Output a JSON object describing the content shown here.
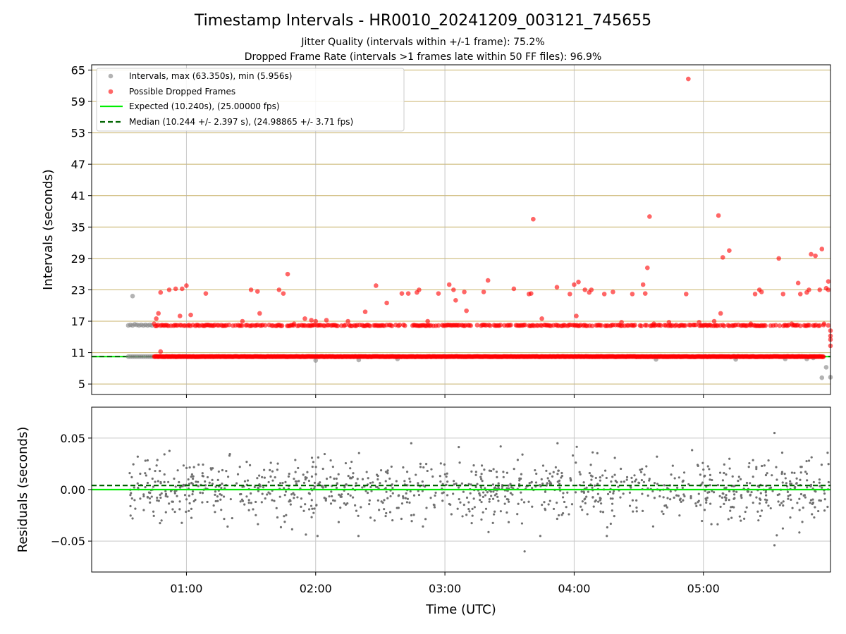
{
  "chart_data": [
    {
      "type": "scatter",
      "title": "Timestamp Intervals - HR0010_20241209_003121_745655",
      "subtitle_lines": [
        "Jitter Quality (intervals within +/-1 frame): 75.2%",
        "Dropped Frame Rate (intervals >1 frames late within 50 FF files): 96.9%"
      ],
      "xlabel": "",
      "ylabel": "Intervals (seconds)",
      "xlim": [
        "00:16",
        "05:59"
      ],
      "ylim": [
        3,
        66
      ],
      "y_ticks": [
        5,
        11,
        17,
        23,
        29,
        35,
        41,
        47,
        53,
        59,
        65
      ],
      "x_ticks": [
        "01:00",
        "02:00",
        "03:00",
        "04:00",
        "05:00"
      ],
      "grid": true,
      "legend_placement": "top-left",
      "legend": [
        "Intervals, max (63.350s), min (5.956s)",
        "Possible Dropped Frames",
        "Expected (10.240s), (25.00000 fps)",
        "Median (10.244 +/- 2.397 s), (24.98865 +/- 3.71 fps)"
      ],
      "expected_interval": 10.24,
      "median_interval": 10.244,
      "series": [
        {
          "name": "Intervals, max (63.350s), min (5.956s)",
          "color": "#808080",
          "points": [
            [
              "00:33",
              10.24
            ],
            [
              "00:34",
              10.24
            ],
            [
              "00:35",
              10.24
            ],
            [
              "00:36",
              10.24
            ],
            [
              "00:37",
              10.24
            ],
            [
              "00:38",
              10.24
            ],
            [
              "00:39",
              10.24
            ],
            [
              "00:40",
              10.24
            ],
            [
              "00:41",
              10.24
            ],
            [
              "00:42",
              10.24
            ],
            [
              "00:43",
              10.24
            ],
            [
              "00:44",
              10.24
            ],
            [
              "00:33",
              16.2
            ],
            [
              "00:34",
              16.3
            ],
            [
              "00:35",
              16.2
            ],
            [
              "00:36",
              16.4
            ],
            [
              "00:37",
              16.3
            ],
            [
              "00:38",
              16.2
            ],
            [
              "00:39",
              16.3
            ],
            [
              "00:40",
              16.2
            ],
            [
              "00:41",
              16.3
            ],
            [
              "00:42",
              16.2
            ],
            [
              "00:43",
              16.3
            ],
            [
              "00:44",
              16.2
            ],
            [
              "00:35",
              21.8
            ],
            [
              "02:00",
              9.5
            ],
            [
              "02:20",
              9.6
            ],
            [
              "02:38",
              9.8
            ],
            [
              "04:38",
              9.7
            ],
            [
              "05:15",
              9.7
            ],
            [
              "05:38",
              9.8
            ],
            [
              "05:48",
              9.8
            ],
            [
              "05:51",
              10.0
            ],
            [
              "05:55",
              6.2
            ],
            [
              "05:57",
              8.2
            ],
            [
              "05:59",
              6.3
            ]
          ]
        },
        {
          "name": "Possible Dropped Frames",
          "color": "#ff0000",
          "band_intervals": [
            10.24,
            16.2
          ],
          "band_x_range": [
            "00:45",
            "05:56"
          ],
          "points": [
            [
              "00:45",
              16.5
            ],
            [
              "00:46",
              17.5
            ],
            [
              "00:47",
              18.5
            ],
            [
              "00:48",
              22.5
            ],
            [
              "00:48",
              11.2
            ],
            [
              "00:52",
              23.0
            ],
            [
              "00:55",
              23.2
            ],
            [
              "00:57",
              18.0
            ],
            [
              "00:58",
              23.2
            ],
            [
              "01:00",
              23.8
            ],
            [
              "01:02",
              18.2
            ],
            [
              "01:09",
              22.3
            ],
            [
              "01:26",
              17.0
            ],
            [
              "01:30",
              23.0
            ],
            [
              "01:33",
              22.7
            ],
            [
              "01:34",
              18.5
            ],
            [
              "01:43",
              23.0
            ],
            [
              "01:45",
              22.3
            ],
            [
              "01:47",
              26.0
            ],
            [
              "01:50",
              16.5
            ],
            [
              "01:55",
              17.5
            ],
            [
              "01:58",
              17.2
            ],
            [
              "02:00",
              17.0
            ],
            [
              "02:05",
              17.2
            ],
            [
              "02:15",
              17.0
            ],
            [
              "02:23",
              18.8
            ],
            [
              "02:28",
              23.8
            ],
            [
              "02:33",
              20.5
            ],
            [
              "02:40",
              22.3
            ],
            [
              "02:43",
              22.3
            ],
            [
              "02:47",
              22.5
            ],
            [
              "02:48",
              23.0
            ],
            [
              "02:52",
              17.0
            ],
            [
              "02:57",
              22.3
            ],
            [
              "03:02",
              24.0
            ],
            [
              "03:04",
              23.0
            ],
            [
              "03:05",
              21.0
            ],
            [
              "03:09",
              22.6
            ],
            [
              "03:10",
              19.0
            ],
            [
              "03:18",
              22.6
            ],
            [
              "03:20",
              24.8
            ],
            [
              "03:32",
              23.2
            ],
            [
              "03:39",
              22.2
            ],
            [
              "03:40",
              22.3
            ],
            [
              "03:41",
              36.5
            ],
            [
              "03:45",
              17.5
            ],
            [
              "03:52",
              23.5
            ],
            [
              "03:58",
              22.2
            ],
            [
              "04:00",
              24.0
            ],
            [
              "04:01",
              18.0
            ],
            [
              "04:02",
              24.5
            ],
            [
              "04:05",
              23.0
            ],
            [
              "04:07",
              22.5
            ],
            [
              "04:08",
              23.0
            ],
            [
              "04:14",
              22.2
            ],
            [
              "04:18",
              22.6
            ],
            [
              "04:22",
              16.8
            ],
            [
              "04:27",
              22.2
            ],
            [
              "04:32",
              24.0
            ],
            [
              "04:33",
              22.3
            ],
            [
              "04:34",
              27.2
            ],
            [
              "04:35",
              37.0
            ],
            [
              "04:37",
              16.5
            ],
            [
              "04:44",
              16.8
            ],
            [
              "04:52",
              22.2
            ],
            [
              "04:53",
              63.3
            ],
            [
              "04:58",
              16.8
            ],
            [
              "05:05",
              17.0
            ],
            [
              "05:07",
              37.2
            ],
            [
              "05:08",
              18.5
            ],
            [
              "05:09",
              29.2
            ],
            [
              "05:12",
              30.5
            ],
            [
              "05:22",
              16.5
            ],
            [
              "05:24",
              22.2
            ],
            [
              "05:26",
              23.0
            ],
            [
              "05:27",
              22.6
            ],
            [
              "05:35",
              29.0
            ],
            [
              "05:37",
              22.2
            ],
            [
              "05:41",
              16.5
            ],
            [
              "05:44",
              24.3
            ],
            [
              "05:45",
              22.2
            ],
            [
              "05:48",
              22.5
            ],
            [
              "05:49",
              23.0
            ],
            [
              "05:50",
              29.8
            ],
            [
              "05:52",
              29.5
            ],
            [
              "05:54",
              23.0
            ],
            [
              "05:55",
              30.8
            ],
            [
              "05:56",
              16.5
            ],
            [
              "05:57",
              23.3
            ],
            [
              "05:58",
              23.0
            ],
            [
              "05:58",
              24.6
            ],
            [
              "05:58",
              16.2
            ],
            [
              "05:59",
              13.5
            ],
            [
              "05:59",
              15.2
            ],
            [
              "05:59",
              12.3
            ],
            [
              "05:59",
              14.2
            ]
          ]
        }
      ]
    },
    {
      "type": "scatter",
      "title": "",
      "xlabel": "Time (UTC)",
      "ylabel": "Residuals (seconds)",
      "xlim": [
        "00:16",
        "05:59"
      ],
      "ylim": [
        -0.08,
        0.08
      ],
      "y_ticks": [
        -0.05,
        0.0,
        0.05
      ],
      "y_tick_labels": [
        "−0.05",
        "0.00",
        "0.05"
      ],
      "x_ticks": [
        "01:00",
        "02:00",
        "03:00",
        "04:00",
        "05:00"
      ],
      "grid": true,
      "expected_residual": 0.0,
      "median_residual": 0.004,
      "series": [
        {
          "name": "",
          "color": "#707070",
          "x_range": [
            "00:33",
            "05:59"
          ],
          "spread_sd": 0.015,
          "points_count": 1100,
          "extremes": [
            [
              "05:33",
              0.055
            ],
            [
              "05:33",
              -0.054
            ],
            [
              "03:37",
              -0.06
            ],
            [
              "03:36",
              0.034
            ],
            [
              "00:35",
              -0.028
            ],
            [
              "01:20",
              0.033
            ]
          ]
        }
      ]
    }
  ]
}
